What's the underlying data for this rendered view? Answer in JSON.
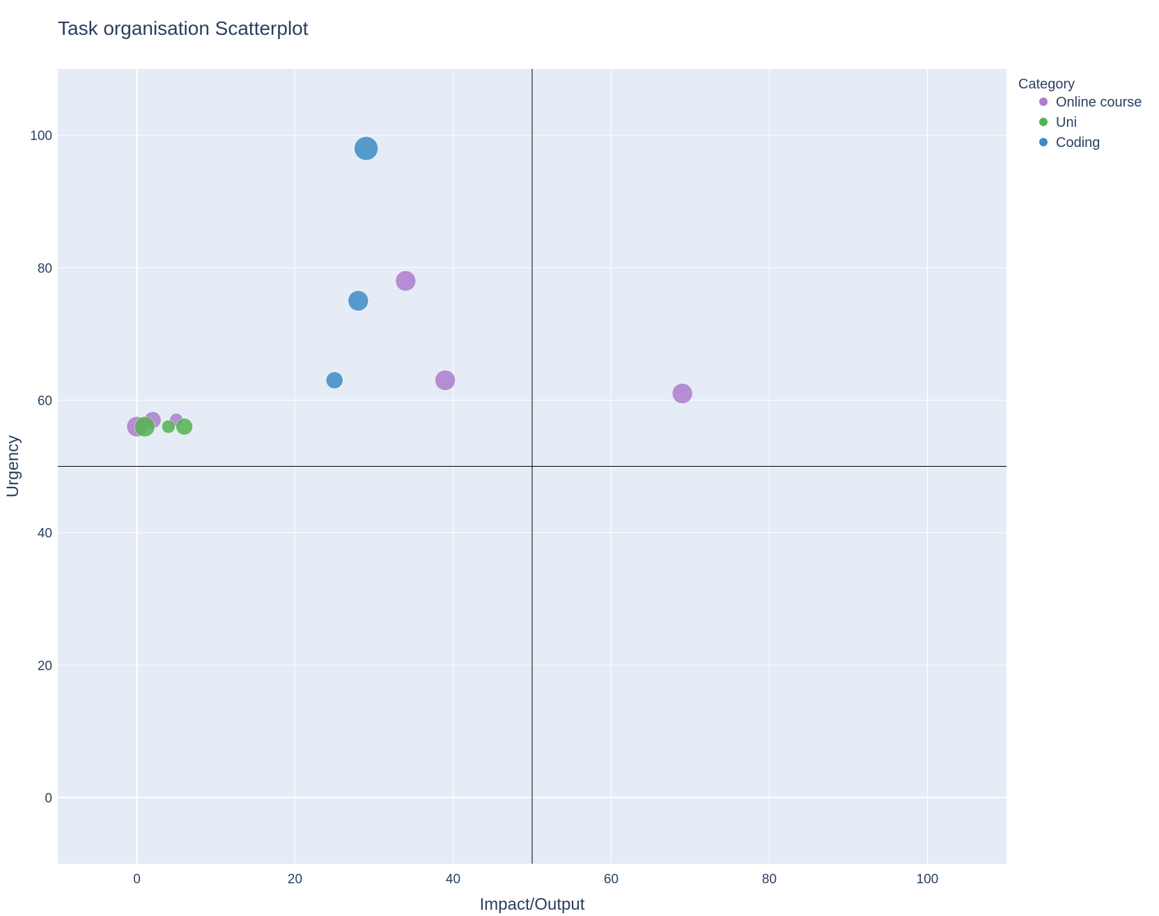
{
  "chart_data": {
    "type": "scatter",
    "title": "Task organisation Scatterplot",
    "xlabel": "Impact/Output",
    "ylabel": "Urgency",
    "xlim": [
      -10,
      110
    ],
    "ylim": [
      -10,
      110
    ],
    "xticks": [
      0,
      20,
      40,
      60,
      80,
      100
    ],
    "yticks": [
      0,
      20,
      40,
      60,
      80,
      100
    ],
    "grid": true,
    "reference_lines": {
      "x": 50,
      "y": 50
    },
    "legend": {
      "title": "Category",
      "placement": "top-right outside"
    },
    "series": [
      {
        "name": "Online course",
        "color": "#ab7dcd",
        "points": [
          {
            "x": 0,
            "y": 56,
            "size": 3
          },
          {
            "x": 2,
            "y": 57,
            "size": 2
          },
          {
            "x": 5,
            "y": 57,
            "size": 1
          },
          {
            "x": 34,
            "y": 78,
            "size": 3
          },
          {
            "x": 39,
            "y": 63,
            "size": 3
          },
          {
            "x": 69,
            "y": 61,
            "size": 3
          }
        ]
      },
      {
        "name": "Uni",
        "color": "#54b351",
        "points": [
          {
            "x": 1,
            "y": 56,
            "size": 3
          },
          {
            "x": 4,
            "y": 56,
            "size": 1
          },
          {
            "x": 6,
            "y": 56,
            "size": 2
          }
        ]
      },
      {
        "name": "Coding",
        "color": "#3d8bc6",
        "points": [
          {
            "x": 25,
            "y": 63,
            "size": 2
          },
          {
            "x": 28,
            "y": 75,
            "size": 3
          },
          {
            "x": 29,
            "y": 98,
            "size": 4
          }
        ]
      }
    ]
  }
}
